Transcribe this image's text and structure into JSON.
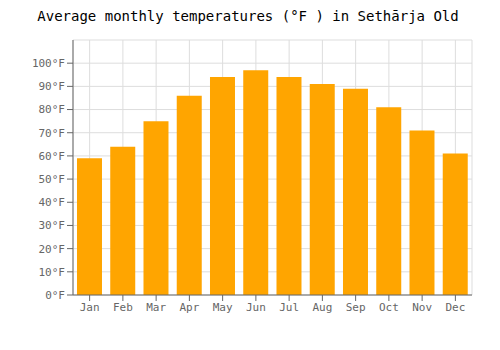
{
  "chart_data": {
    "type": "bar",
    "title": "Average monthly temperatures (°F ) in Sethārja Old",
    "categories": [
      "Jan",
      "Feb",
      "Mar",
      "Apr",
      "May",
      "Jun",
      "Jul",
      "Aug",
      "Sep",
      "Oct",
      "Nov",
      "Dec"
    ],
    "values": [
      59,
      64,
      75,
      86,
      94,
      97,
      94,
      91,
      89,
      81,
      71,
      61
    ],
    "color": "#FFA500",
    "ylim": [
      0,
      110
    ],
    "yticks": [
      {
        "value": 0,
        "label": "0°F"
      },
      {
        "value": 10,
        "label": "10°F"
      },
      {
        "value": 20,
        "label": "20°F"
      },
      {
        "value": 30,
        "label": "30°F"
      },
      {
        "value": 40,
        "label": "40°F"
      },
      {
        "value": 50,
        "label": "50°F"
      },
      {
        "value": 60,
        "label": "60°F"
      },
      {
        "value": 70,
        "label": "70°F"
      },
      {
        "value": 80,
        "label": "80°F"
      },
      {
        "value": 90,
        "label": "90°F"
      },
      {
        "value": 100,
        "label": "100°F"
      }
    ],
    "grid": true
  }
}
